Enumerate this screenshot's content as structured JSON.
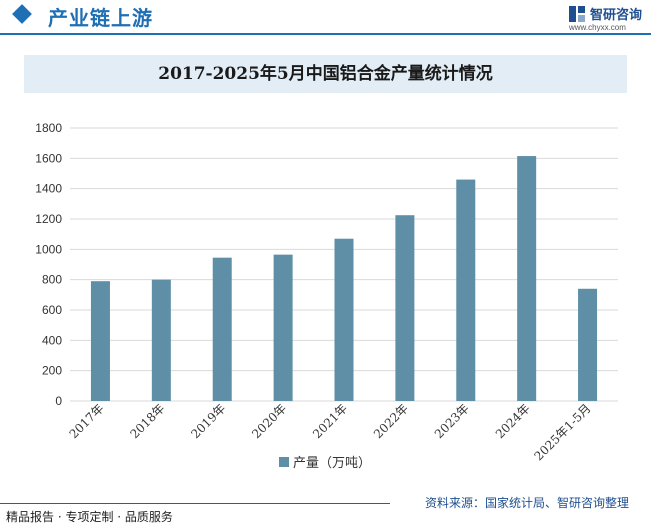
{
  "header": {
    "section_title": "产业链上游",
    "brand_name": "智研咨询",
    "brand_url": "www.chyxx.com"
  },
  "footer": {
    "left_text": "精品报告 · 专项定制 · 品质服务",
    "source_text": "资料来源：国家统计局、智研咨询整理"
  },
  "colors": {
    "accent": "#1f6fb5",
    "bar": "#5e8fa6",
    "title_bg": "#e3edf6"
  },
  "chart_data": {
    "type": "bar",
    "title": "2017-2025年5月中国铝合金产量统计情况",
    "categories": [
      "2017年",
      "2018年",
      "2019年",
      "2020年",
      "2021年",
      "2022年",
      "2023年",
      "2024年",
      "2025年1-5月"
    ],
    "series": [
      {
        "name": "产量（万吨）",
        "values": [
          790,
          800,
          945,
          965,
          1070,
          1225,
          1460,
          1615,
          740
        ]
      }
    ],
    "ylim": [
      0,
      1800
    ],
    "yticks": [
      0,
      200,
      400,
      600,
      800,
      1000,
      1200,
      1400,
      1600,
      1800
    ],
    "grid": true,
    "legend_position": "bottom"
  }
}
